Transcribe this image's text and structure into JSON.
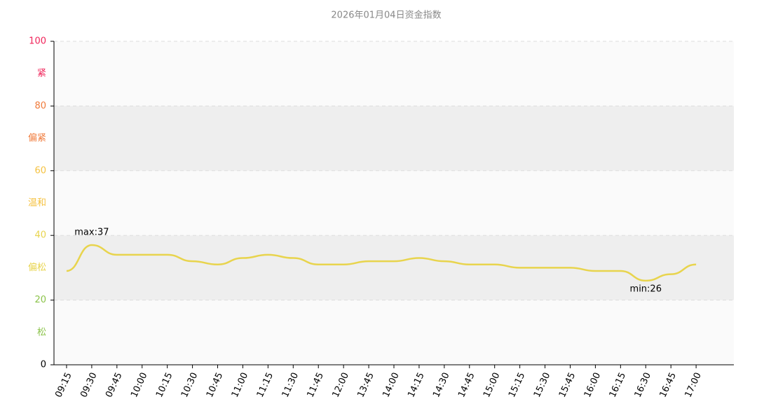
{
  "chart_data": {
    "type": "line",
    "title": "2026年01月04日资金指数",
    "categories": [
      "09:15",
      "09:30",
      "09:45",
      "10:00",
      "10:15",
      "10:30",
      "10:45",
      "11:00",
      "11:15",
      "11:30",
      "11:45",
      "12:00",
      "13:45",
      "14:00",
      "14:15",
      "14:30",
      "14:45",
      "15:00",
      "15:15",
      "15:30",
      "15:45",
      "16:00",
      "16:15",
      "16:30",
      "16:45",
      "17:00"
    ],
    "series": [
      {
        "name": "资金指数",
        "color": "#e8d44d",
        "values": [
          29,
          37,
          34,
          34,
          34,
          32,
          31,
          33,
          34,
          33,
          31,
          31,
          32,
          32,
          33,
          32,
          31,
          31,
          30,
          30,
          30,
          29,
          29,
          26,
          28,
          31
        ]
      }
    ],
    "annotations": [
      "max:37",
      "min:26"
    ],
    "ylim": [
      0,
      100
    ],
    "yticks": [
      0,
      20,
      40,
      60,
      80,
      100
    ],
    "ytick_colors": [
      "#000000",
      "#8bc34a",
      "#e8d44d",
      "#f5c242",
      "#f07a3a",
      "#f0245a"
    ],
    "bands": [
      {
        "name": "松",
        "color": "#8bc34a",
        "fill": "#fafafa"
      },
      {
        "name": "偏松",
        "color": "#e8d44d",
        "fill": "#eeeeee"
      },
      {
        "name": "温和",
        "color": "#f5c242",
        "fill": "#fafafa"
      },
      {
        "name": "偏紧",
        "color": "#f07a3a",
        "fill": "#eeeeee"
      },
      {
        "name": "紧",
        "color": "#f0245a",
        "fill": "#fafafa"
      }
    ],
    "grid": true
  }
}
